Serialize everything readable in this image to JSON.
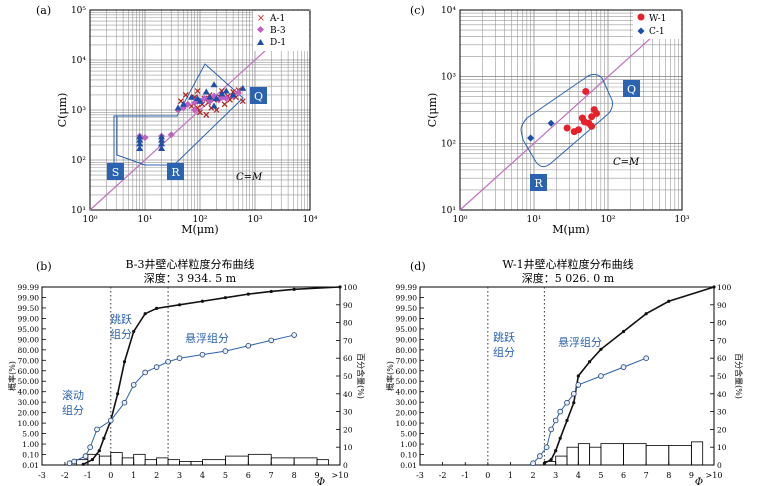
{
  "chart_data": [
    {
      "panel": "(a)",
      "type": "scatter",
      "xlabel": "M(μm)",
      "ylabel": "C(μm)",
      "xscale": "log",
      "yscale": "log",
      "xlim": [
        1,
        10000
      ],
      "ylim": [
        10,
        100000
      ],
      "xticks": [
        "10⁰",
        "10¹",
        "10²",
        "10³",
        "10⁴"
      ],
      "yticks": [
        "10¹",
        "10²",
        "10³",
        "10⁴",
        "10⁵"
      ],
      "region_labels": [
        "S",
        "R",
        "Q"
      ],
      "diagonal_label": "C=M",
      "legend_position": "top-right",
      "series": [
        {
          "name": "A-1",
          "marker": "x",
          "color": "#b22222",
          "points": [
            [
              45,
              1500
            ],
            [
              55,
              2000
            ],
            [
              70,
              1200
            ],
            [
              80,
              1800
            ],
            [
              90,
              1100
            ],
            [
              100,
              900
            ],
            [
              110,
              1300
            ],
            [
              120,
              1700
            ],
            [
              130,
              800
            ],
            [
              140,
              1400
            ],
            [
              150,
              2000
            ],
            [
              160,
              1100
            ],
            [
              180,
              1600
            ],
            [
              200,
              1000
            ],
            [
              230,
              1800
            ],
            [
              250,
              2400
            ],
            [
              280,
              1300
            ],
            [
              320,
              1900
            ],
            [
              350,
              1600
            ],
            [
              400,
              2300
            ],
            [
              450,
              1800
            ],
            [
              500,
              2500
            ],
            [
              600,
              1500
            ],
            [
              90,
              2400
            ]
          ]
        },
        {
          "name": "B-3",
          "marker": "diamond",
          "color": "#c060c0",
          "points": [
            [
              8,
              300
            ],
            [
              10,
              280
            ],
            [
              20,
              300
            ],
            [
              30,
              320
            ],
            [
              40,
              1000
            ],
            [
              50,
              1100
            ],
            [
              60,
              1300
            ],
            [
              80,
              1400
            ],
            [
              100,
              1500
            ],
            [
              120,
              1700
            ],
            [
              150,
              1500
            ],
            [
              180,
              1900
            ],
            [
              220,
              1600
            ],
            [
              260,
              1800
            ],
            [
              300,
              1700
            ],
            [
              400,
              1900
            ],
            [
              500,
              2200
            ],
            [
              80,
              1000
            ]
          ]
        },
        {
          "name": "D-1",
          "marker": "triangle",
          "color": "#1f4ea8",
          "points": [
            [
              8,
              170
            ],
            [
              8,
              210
            ],
            [
              8,
              250
            ],
            [
              8,
              290
            ],
            [
              20,
              170
            ],
            [
              20,
              210
            ],
            [
              20,
              250
            ],
            [
              20,
              290
            ],
            [
              40,
              1100
            ],
            [
              50,
              1300
            ],
            [
              70,
              1800
            ],
            [
              90,
              1700
            ],
            [
              100,
              1500
            ],
            [
              130,
              2300
            ],
            [
              150,
              1800
            ],
            [
              180,
              3200
            ],
            [
              200,
              1700
            ],
            [
              250,
              2100
            ],
            [
              300,
              2400
            ],
            [
              400,
              2000
            ],
            [
              600,
              2700
            ],
            [
              180,
              1200
            ]
          ]
        }
      ]
    },
    {
      "panel": "(c)",
      "type": "scatter",
      "xlabel": "M(μm)",
      "ylabel": "C(μm)",
      "xscale": "log",
      "yscale": "log",
      "xlim": [
        1,
        1000
      ],
      "ylim": [
        10,
        10000
      ],
      "xticks": [
        "10⁰",
        "10¹",
        "10²",
        "10³"
      ],
      "yticks": [
        "10¹",
        "10²",
        "10³",
        "10⁴"
      ],
      "region_labels": [
        "R",
        "Q"
      ],
      "diagonal_label": "C=M",
      "legend_position": "top-right",
      "series": [
        {
          "name": "W-1",
          "marker": "circle",
          "color": "#e8202a",
          "points": [
            [
              28,
              170
            ],
            [
              35,
              150
            ],
            [
              40,
              160
            ],
            [
              45,
              240
            ],
            [
              50,
              600
            ],
            [
              55,
              200
            ],
            [
              60,
              180
            ],
            [
              60,
              250
            ],
            [
              65,
              320
            ],
            [
              70,
              280
            ],
            [
              48,
              210
            ]
          ]
        },
        {
          "name": "C-1",
          "marker": "diamond",
          "color": "#1f4ea8",
          "points": [
            [
              9,
              120
            ],
            [
              17,
              200
            ]
          ]
        }
      ]
    },
    {
      "panel": "(b)",
      "type": "line",
      "title": "B-3井壁心样粒度分布曲线",
      "subtitle": "深度：3 934. 5 m",
      "xlabel": "Φ",
      "ylabel_left": "概率(%)",
      "ylabel_right": "百分含量(%)",
      "xlim": [
        -3,
        10
      ],
      "xticks": [
        "-3",
        "-2",
        "-1",
        "0",
        "1",
        "2",
        "3",
        "4",
        "5",
        "6",
        "7",
        "8",
        "9",
        ">10"
      ],
      "yticks_left": [
        "0.01",
        "0.10",
        "1.00",
        "5.00",
        "10.00",
        "20.00",
        "30.00",
        "40.00",
        "50.00",
        "60.00",
        "70.00",
        "80.00",
        "90.00",
        "95.00",
        "99.00",
        "99.50",
        "99.90",
        "99.99"
      ],
      "yticks_right": [
        "0",
        "10",
        "20",
        "30",
        "40",
        "50",
        "60",
        "70",
        "80",
        "90",
        "100"
      ],
      "segment_labels": [
        "滚动组分",
        "跳跃组分",
        "悬浮组分"
      ],
      "dotted_lines_phi": [
        0,
        2.5
      ],
      "cumulative_percent": {
        "x": [
          -1.2,
          -0.8,
          -0.5,
          -0.3,
          0,
          0.3,
          0.6,
          1,
          1.5,
          2,
          3,
          4,
          5,
          6,
          7,
          8,
          10
        ],
        "y": [
          0.4,
          3,
          8,
          15,
          25,
          40,
          58,
          75,
          85,
          88,
          90,
          92,
          94,
          96,
          97.5,
          98.7,
          100
        ]
      },
      "probability_fit": {
        "x": [
          -1.8,
          -1.6,
          -1.1,
          -0.9,
          -0.6,
          0,
          0.6,
          1,
          1.5,
          2,
          2.5,
          3,
          4,
          5,
          6,
          7,
          8
        ],
        "y": [
          1,
          2,
          5,
          10,
          20,
          25,
          35,
          45,
          52,
          55,
          58,
          60,
          62,
          64,
          67,
          70,
          73
        ]
      },
      "histogram": {
        "x": [
          -1.5,
          -1,
          -0.5,
          0,
          0.5,
          1,
          1.5,
          2,
          2.5,
          3,
          3.5,
          4,
          5,
          6,
          7,
          8,
          9
        ],
        "y": [
          3,
          6,
          5,
          7,
          4,
          6,
          3,
          4,
          3,
          2,
          2,
          3,
          5,
          6,
          4,
          4,
          3
        ]
      }
    },
    {
      "panel": "(d)",
      "type": "line",
      "title": "W-1井壁心样粒度分布曲线",
      "subtitle": "深度：5 026. 0 m",
      "xlabel": "Φ",
      "ylabel_left": "概率(%)",
      "ylabel_right": "百分含量(%)",
      "xlim": [
        -3,
        10
      ],
      "xticks": [
        "-3",
        "-2",
        "-1",
        "0",
        "1",
        "2",
        "3",
        "4",
        "5",
        "6",
        "7",
        "8",
        "9",
        ">10"
      ],
      "yticks_left": [
        "0.01",
        "0.10",
        "1.00",
        "5.00",
        "10.00",
        "20.00",
        "30.00",
        "40.00",
        "50.00",
        "60.00",
        "70.00",
        "80.00",
        "90.00",
        "95.00",
        "99.00",
        "99.50",
        "99.90",
        "99.99"
      ],
      "yticks_right": [
        "0",
        "10",
        "20",
        "30",
        "40",
        "50",
        "60",
        "70",
        "80",
        "90",
        "100"
      ],
      "segment_labels": [
        "跳跃组分",
        "悬浮组分"
      ],
      "dotted_lines_phi": [
        0,
        2.5
      ],
      "cumulative_percent": {
        "x": [
          2.5,
          2.8,
          3,
          3.2,
          3.5,
          3.8,
          4,
          4.5,
          5,
          6,
          7,
          8,
          10
        ],
        "y": [
          1,
          3,
          8,
          15,
          25,
          35,
          50,
          58,
          65,
          75,
          85,
          92,
          100
        ]
      },
      "probability_fit": {
        "x": [
          2,
          2.3,
          2.6,
          2.8,
          3,
          3.2,
          3.5,
          3.8,
          4,
          5,
          6,
          7
        ],
        "y": [
          1,
          5,
          10,
          20,
          25,
          30,
          35,
          40,
          45,
          50,
          55,
          60
        ]
      },
      "histogram": {
        "x": [
          2.5,
          3,
          3.5,
          4,
          4.5,
          5,
          6,
          7,
          8,
          9
        ],
        "y": [
          2,
          5,
          10,
          12,
          10,
          12,
          12,
          11,
          11,
          13
        ]
      }
    }
  ]
}
